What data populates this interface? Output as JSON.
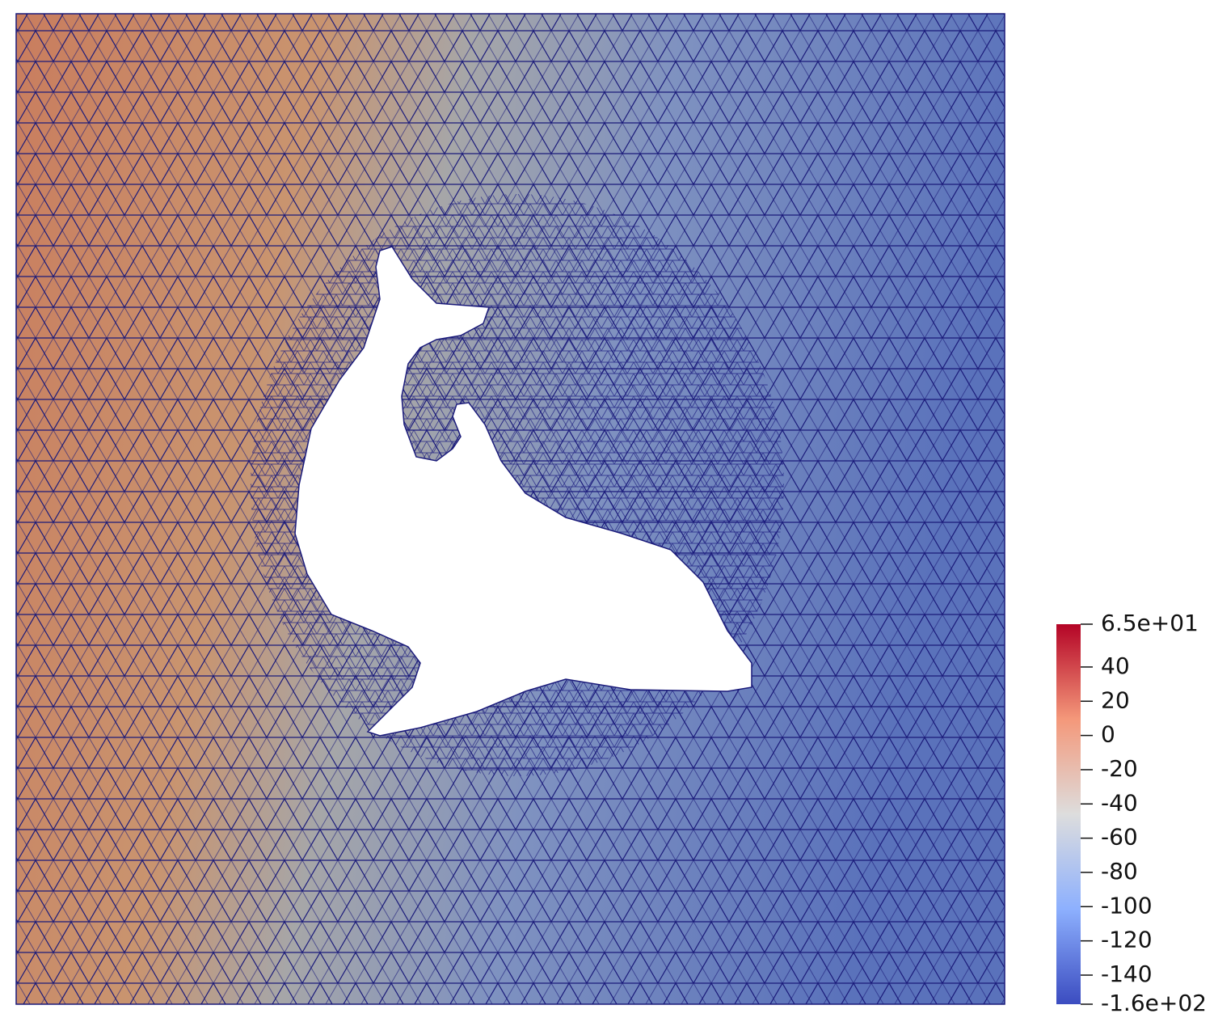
{
  "colorbar": {
    "range": [
      -157,
      65
    ],
    "colors": [
      "#3b4cc0",
      "#8db0fe",
      "#dddddd",
      "#f4987a",
      "#b40426"
    ],
    "ticks": [
      {
        "value": 65,
        "label": "6.5e+01"
      },
      40,
      20,
      0,
      -20,
      -40,
      -60,
      -80,
      -100,
      -120,
      -140,
      {
        "value": -157,
        "label": "-1.6e+02"
      }
    ]
  }
}
